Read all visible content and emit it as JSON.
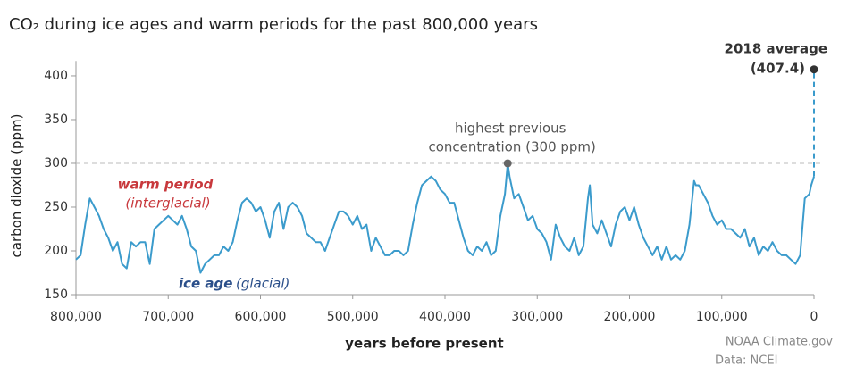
{
  "chart_data": {
    "type": "line",
    "title": "CO₂ during ice ages and warm periods for the past 800,000 years",
    "x_label": "years before present",
    "y_label": "carbon dioxide (ppm)",
    "xlim": [
      800000,
      0
    ],
    "ylim": [
      150,
      417
    ],
    "xticks": [
      {
        "value": 800000,
        "label": "800,000"
      },
      {
        "value": 700000,
        "label": "700,000"
      },
      {
        "value": 600000,
        "label": "600,000"
      },
      {
        "value": 500000,
        "label": "500,000"
      },
      {
        "value": 400000,
        "label": "400,000"
      },
      {
        "value": 300000,
        "label": "300,000"
      },
      {
        "value": 200000,
        "label": "200,000"
      },
      {
        "value": 100000,
        "label": "100,000"
      },
      0
    ],
    "yticks": [
      150,
      200,
      250,
      300,
      350,
      400
    ],
    "reference_line": 300,
    "x": [
      800000,
      795000,
      790000,
      785000,
      780000,
      775000,
      770000,
      765000,
      760000,
      755000,
      750000,
      745000,
      740000,
      735000,
      730000,
      725000,
      720000,
      715000,
      710000,
      705000,
      700000,
      695000,
      690000,
      685000,
      680000,
      675000,
      670000,
      665000,
      660000,
      655000,
      650000,
      645000,
      640000,
      635000,
      630000,
      625000,
      620000,
      615000,
      610000,
      605000,
      600000,
      595000,
      590000,
      585000,
      580000,
      575000,
      570000,
      565000,
      560000,
      555000,
      550000,
      545000,
      540000,
      535000,
      530000,
      525000,
      520000,
      515000,
      510000,
      505000,
      500000,
      495000,
      490000,
      485000,
      480000,
      475000,
      470000,
      465000,
      460000,
      455000,
      450000,
      445000,
      440000,
      435000,
      430000,
      425000,
      420000,
      415000,
      410000,
      405000,
      400000,
      395000,
      390000,
      385000,
      380000,
      375000,
      370000,
      365000,
      360000,
      355000,
      350000,
      345000,
      340000,
      335000,
      332000,
      330000,
      325000,
      320000,
      315000,
      310000,
      305000,
      300000,
      295000,
      290000,
      285000,
      280000,
      275000,
      270000,
      265000,
      260000,
      255000,
      250000,
      245000,
      243000,
      240000,
      235000,
      230000,
      225000,
      220000,
      215000,
      210000,
      205000,
      200000,
      195000,
      190000,
      185000,
      180000,
      175000,
      170000,
      165000,
      160000,
      155000,
      150000,
      145000,
      140000,
      135000,
      130000,
      128000,
      125000,
      120000,
      115000,
      110000,
      105000,
      100000,
      95000,
      90000,
      85000,
      80000,
      75000,
      70000,
      65000,
      60000,
      55000,
      50000,
      45000,
      40000,
      35000,
      30000,
      25000,
      20000,
      15000,
      10000,
      5000,
      3000,
      0
    ],
    "series": [
      {
        "color": "#3b9bcc",
        "values": [
          190,
          195,
          230,
          260,
          250,
          240,
          225,
          215,
          200,
          210,
          185,
          180,
          210,
          205,
          210,
          210,
          185,
          225,
          230,
          235,
          240,
          235,
          230,
          240,
          225,
          205,
          200,
          175,
          185,
          190,
          195,
          195,
          205,
          200,
          210,
          235,
          255,
          260,
          255,
          245,
          250,
          235,
          215,
          245,
          255,
          225,
          250,
          255,
          250,
          240,
          220,
          215,
          210,
          210,
          200,
          215,
          230,
          245,
          245,
          240,
          230,
          240,
          225,
          230,
          200,
          215,
          205,
          195,
          195,
          200,
          200,
          195,
          200,
          230,
          255,
          275,
          280,
          285,
          280,
          270,
          265,
          255,
          255,
          235,
          215,
          200,
          195,
          205,
          200,
          210,
          195,
          200,
          240,
          265,
          300,
          285,
          260,
          265,
          250,
          235,
          240,
          225,
          220,
          210,
          190,
          230,
          215,
          205,
          200,
          215,
          195,
          205,
          260,
          275,
          230,
          220,
          235,
          220,
          205,
          230,
          245,
          250,
          235,
          250,
          230,
          215,
          205,
          195,
          205,
          190,
          205,
          190,
          195,
          190,
          200,
          230,
          280,
          275,
          275,
          265,
          255,
          240,
          230,
          235,
          225,
          225,
          220,
          215,
          225,
          205,
          215,
          195,
          205,
          200,
          210,
          200,
          195,
          195,
          190,
          185,
          195,
          260,
          265,
          275,
          285
        ]
      }
    ],
    "annotations": [
      {
        "x": 0,
        "y": 407.4,
        "text": "2018 average",
        "value_label": "(407.4)"
      },
      {
        "x": 332000,
        "y": 300,
        "text": "highest previous",
        "text2": "concentration (300 ppm)"
      }
    ],
    "labels": [
      "warm period",
      "(interglacial)",
      "ice age",
      "(glacial)"
    ],
    "credits": [
      "NOAA Climate.gov",
      "Data: NCEI"
    ]
  }
}
